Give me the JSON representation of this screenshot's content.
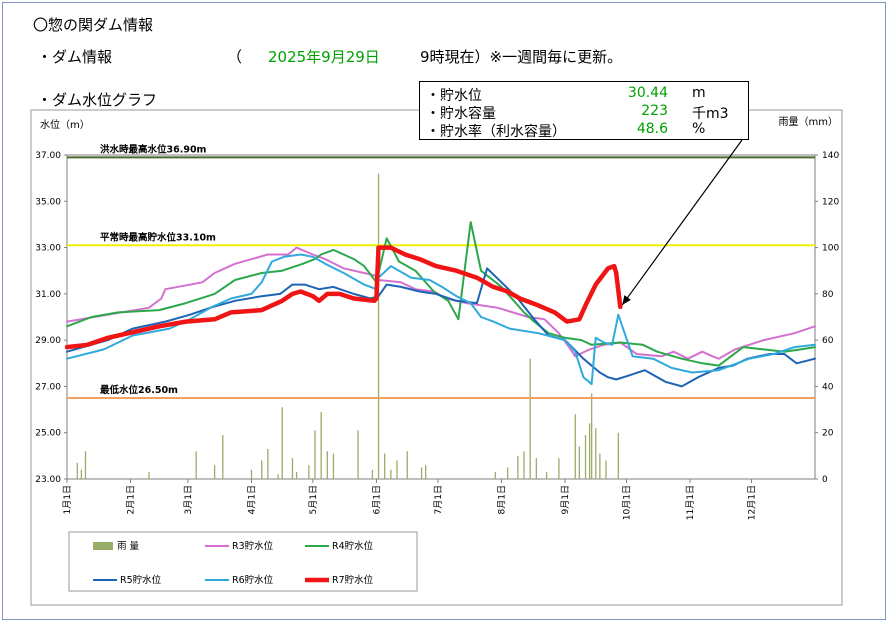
{
  "header": {
    "title": "〇惣の関ダム情報",
    "info_label": "・ダム情報",
    "paren_open": "（",
    "date": "2025年9月29日",
    "time_note": "9時現在）※一週間毎に更新。",
    "graph_label": "・ダム水位グラフ"
  },
  "status_box": {
    "items": [
      {
        "label": "・貯水位",
        "value": "30.44",
        "unit": "m"
      },
      {
        "label": "・貯水容量",
        "value": "223",
        "unit": "千m3"
      },
      {
        "label": "・貯水率（利水容量）",
        "value": "48.6",
        "unit": "%"
      }
    ]
  },
  "colors": {
    "rain": "#9aac6a",
    "R3": "#d470d0",
    "R4": "#2aa84a",
    "R5": "#1e64b4",
    "R6": "#30aadc",
    "R7": "#f01414",
    "flood_line": "#4a6a2a",
    "normal_line": "#f0f000",
    "min_line": "#f0a060",
    "value_text": "#00a000"
  },
  "chart_data": {
    "type": "line",
    "ylabel_left": "水位（m）",
    "ylabel_right": "雨量（mm）",
    "ylim_left": [
      23,
      37
    ],
    "ylim_right": [
      0,
      140
    ],
    "yticks_left": [
      "37.00",
      "35.00",
      "33.00",
      "31.00",
      "29.00",
      "27.00",
      "25.00",
      "23.00"
    ],
    "yticks_right": [
      "140",
      "120",
      "100",
      "80",
      "60",
      "40",
      "20",
      "0"
    ],
    "x_domain_days": [
      0,
      365
    ],
    "months": [
      {
        "label": "1月1日",
        "day": 0
      },
      {
        "label": "2月1日",
        "day": 31
      },
      {
        "label": "3月1日",
        "day": 59
      },
      {
        "label": "4月1日",
        "day": 90
      },
      {
        "label": "5月1日",
        "day": 120
      },
      {
        "label": "6月1日",
        "day": 151
      },
      {
        "label": "7月1日",
        "day": 181
      },
      {
        "label": "8月1日",
        "day": 212
      },
      {
        "label": "9月1日",
        "day": 243
      },
      {
        "label": "10月1日",
        "day": 273
      },
      {
        "label": "11月1日",
        "day": 304
      },
      {
        "label": "12月1日",
        "day": 334
      }
    ],
    "reference_lines": [
      {
        "name": "洪水時最高水位36.90m",
        "value": 36.9,
        "color_key": "flood_line"
      },
      {
        "name": "平常時最高貯水位33.10m",
        "value": 33.1,
        "color_key": "normal_line"
      },
      {
        "name": "最低水位26.50m",
        "value": 26.5,
        "color_key": "min_line"
      }
    ],
    "rain": {
      "name": "雨 量",
      "points": [
        [
          5,
          7
        ],
        [
          7,
          4
        ],
        [
          9,
          12
        ],
        [
          40,
          3
        ],
        [
          63,
          12
        ],
        [
          72,
          6
        ],
        [
          76,
          19
        ],
        [
          90,
          4
        ],
        [
          95,
          8
        ],
        [
          98,
          13
        ],
        [
          103,
          2
        ],
        [
          105,
          31
        ],
        [
          110,
          9
        ],
        [
          112,
          3
        ],
        [
          118,
          6
        ],
        [
          121,
          21
        ],
        [
          124,
          29
        ],
        [
          127,
          12
        ],
        [
          130,
          11
        ],
        [
          142,
          21
        ],
        [
          149,
          4
        ],
        [
          152,
          132
        ],
        [
          155,
          11
        ],
        [
          158,
          4
        ],
        [
          161,
          8
        ],
        [
          166,
          12
        ],
        [
          173,
          5
        ],
        [
          175,
          6
        ],
        [
          209,
          3
        ],
        [
          215,
          5
        ],
        [
          220,
          10
        ],
        [
          223,
          12
        ],
        [
          226,
          52
        ],
        [
          229,
          9
        ],
        [
          234,
          3
        ],
        [
          240,
          9
        ],
        [
          248,
          28
        ],
        [
          250,
          14
        ],
        [
          253,
          19
        ],
        [
          255,
          24
        ],
        [
          256,
          37
        ],
        [
          258,
          22
        ],
        [
          260,
          11
        ],
        [
          263,
          8
        ],
        [
          269,
          20
        ]
      ]
    },
    "series": [
      {
        "name": "R3貯水位",
        "color_key": "R3",
        "width": 2,
        "points": [
          [
            0,
            29.8
          ],
          [
            20,
            30.1
          ],
          [
            40,
            30.4
          ],
          [
            46,
            30.8
          ],
          [
            48,
            31.2
          ],
          [
            66,
            31.5
          ],
          [
            72,
            31.9
          ],
          [
            82,
            32.3
          ],
          [
            98,
            32.7
          ],
          [
            108,
            32.7
          ],
          [
            112,
            33.0
          ],
          [
            120,
            32.7
          ],
          [
            126,
            32.5
          ],
          [
            135,
            32.1
          ],
          [
            150,
            31.8
          ],
          [
            152,
            31.6
          ],
          [
            163,
            31.5
          ],
          [
            170,
            31.2
          ],
          [
            179,
            31.1
          ],
          [
            185,
            30.8
          ],
          [
            195,
            30.6
          ],
          [
            210,
            30.4
          ],
          [
            225,
            30.0
          ],
          [
            233,
            29.9
          ],
          [
            240,
            29.3
          ],
          [
            245,
            28.7
          ],
          [
            248,
            28.3
          ],
          [
            255,
            28.6
          ],
          [
            262,
            28.8
          ],
          [
            270,
            28.9
          ],
          [
            278,
            28.4
          ],
          [
            290,
            28.3
          ],
          [
            296,
            28.5
          ],
          [
            303,
            28.2
          ],
          [
            310,
            28.5
          ],
          [
            315,
            28.3
          ],
          [
            318,
            28.2
          ],
          [
            326,
            28.6
          ],
          [
            340,
            29.0
          ],
          [
            355,
            29.3
          ],
          [
            365,
            29.6
          ]
        ]
      },
      {
        "name": "R4貯水位",
        "color_key": "R4",
        "width": 2,
        "points": [
          [
            0,
            29.6
          ],
          [
            12,
            30.0
          ],
          [
            25,
            30.2
          ],
          [
            45,
            30.3
          ],
          [
            58,
            30.6
          ],
          [
            72,
            31.0
          ],
          [
            82,
            31.6
          ],
          [
            95,
            31.9
          ],
          [
            105,
            32.0
          ],
          [
            115,
            32.3
          ],
          [
            121,
            32.5
          ],
          [
            124,
            32.7
          ],
          [
            130,
            32.9
          ],
          [
            140,
            32.5
          ],
          [
            145,
            32.2
          ],
          [
            151,
            31.5
          ],
          [
            156,
            33.4
          ],
          [
            162,
            32.4
          ],
          [
            170,
            32.0
          ],
          [
            179,
            31.1
          ],
          [
            186,
            30.7
          ],
          [
            191,
            29.9
          ],
          [
            197,
            34.1
          ],
          [
            202,
            32.0
          ],
          [
            212,
            31.3
          ],
          [
            216,
            30.9
          ],
          [
            223,
            30.2
          ],
          [
            228,
            29.8
          ],
          [
            235,
            29.3
          ],
          [
            243,
            29.1
          ],
          [
            251,
            29.0
          ],
          [
            256,
            28.8
          ],
          [
            270,
            28.9
          ],
          [
            281,
            28.8
          ],
          [
            288,
            28.5
          ],
          [
            300,
            28.2
          ],
          [
            310,
            28.0
          ],
          [
            318,
            27.9
          ],
          [
            330,
            28.7
          ],
          [
            340,
            28.6
          ],
          [
            350,
            28.5
          ],
          [
            358,
            28.6
          ],
          [
            365,
            28.7
          ]
        ]
      },
      {
        "name": "R5貯水位",
        "color_key": "R5",
        "width": 2,
        "points": [
          [
            0,
            28.5
          ],
          [
            20,
            29.0
          ],
          [
            32,
            29.5
          ],
          [
            48,
            29.8
          ],
          [
            60,
            30.1
          ],
          [
            70,
            30.4
          ],
          [
            82,
            30.7
          ],
          [
            95,
            30.9
          ],
          [
            104,
            31.0
          ],
          [
            110,
            31.4
          ],
          [
            116,
            31.4
          ],
          [
            123,
            31.2
          ],
          [
            130,
            31.3
          ],
          [
            140,
            31.0
          ],
          [
            148,
            30.8
          ],
          [
            152,
            30.9
          ],
          [
            156,
            31.4
          ],
          [
            163,
            31.3
          ],
          [
            172,
            31.1
          ],
          [
            180,
            31.0
          ],
          [
            190,
            30.7
          ],
          [
            200,
            30.6
          ],
          [
            205,
            32.1
          ],
          [
            212,
            31.5
          ],
          [
            220,
            30.8
          ],
          [
            228,
            29.9
          ],
          [
            235,
            29.2
          ],
          [
            243,
            29.0
          ],
          [
            252,
            28.2
          ],
          [
            256,
            27.9
          ],
          [
            260,
            27.6
          ],
          [
            264,
            27.4
          ],
          [
            268,
            27.3
          ],
          [
            275,
            27.5
          ],
          [
            282,
            27.7
          ],
          [
            292,
            27.2
          ],
          [
            300,
            27.0
          ],
          [
            308,
            27.4
          ],
          [
            318,
            27.8
          ],
          [
            325,
            27.9
          ],
          [
            332,
            28.2
          ],
          [
            343,
            28.4
          ],
          [
            350,
            28.4
          ],
          [
            356,
            28.0
          ],
          [
            365,
            28.2
          ]
        ]
      },
      {
        "name": "R6貯水位",
        "color_key": "R6",
        "width": 2,
        "points": [
          [
            0,
            28.2
          ],
          [
            18,
            28.6
          ],
          [
            32,
            29.2
          ],
          [
            50,
            29.5
          ],
          [
            60,
            29.9
          ],
          [
            70,
            30.4
          ],
          [
            80,
            30.8
          ],
          [
            90,
            31.0
          ],
          [
            95,
            31.5
          ],
          [
            100,
            32.4
          ],
          [
            106,
            32.6
          ],
          [
            114,
            32.7
          ],
          [
            120,
            32.6
          ],
          [
            126,
            32.3
          ],
          [
            135,
            31.9
          ],
          [
            145,
            31.4
          ],
          [
            151,
            31.2
          ],
          [
            152,
            31.7
          ],
          [
            158,
            32.2
          ],
          [
            168,
            31.7
          ],
          [
            177,
            31.6
          ],
          [
            183,
            31.3
          ],
          [
            190,
            30.9
          ],
          [
            197,
            30.6
          ],
          [
            202,
            30.0
          ],
          [
            208,
            29.8
          ],
          [
            216,
            29.5
          ],
          [
            230,
            29.3
          ],
          [
            243,
            29.0
          ],
          [
            248,
            28.5
          ],
          [
            252,
            27.4
          ],
          [
            256,
            27.1
          ],
          [
            258,
            29.1
          ],
          [
            262,
            28.9
          ],
          [
            266,
            28.8
          ],
          [
            269,
            30.1
          ],
          [
            276,
            28.3
          ],
          [
            286,
            28.2
          ],
          [
            295,
            27.8
          ],
          [
            305,
            27.6
          ],
          [
            318,
            27.7
          ],
          [
            333,
            28.2
          ],
          [
            345,
            28.4
          ],
          [
            355,
            28.7
          ],
          [
            365,
            28.8
          ]
        ]
      },
      {
        "name": "R7貯水位",
        "color_key": "R7",
        "width": 4.5,
        "points": [
          [
            0,
            28.7
          ],
          [
            10,
            28.8
          ],
          [
            20,
            29.1
          ],
          [
            30,
            29.3
          ],
          [
            45,
            29.6
          ],
          [
            58,
            29.8
          ],
          [
            72,
            29.9
          ],
          [
            80,
            30.2
          ],
          [
            95,
            30.3
          ],
          [
            100,
            30.5
          ],
          [
            105,
            30.7
          ],
          [
            110,
            31.0
          ],
          [
            114,
            31.1
          ],
          [
            120,
            30.9
          ],
          [
            123,
            30.7
          ],
          [
            127,
            31.0
          ],
          [
            133,
            31.0
          ],
          [
            140,
            30.8
          ],
          [
            150,
            30.7
          ],
          [
            151,
            30.8
          ],
          [
            152,
            33.0
          ],
          [
            158,
            33.0
          ],
          [
            165,
            32.7
          ],
          [
            172,
            32.5
          ],
          [
            180,
            32.2
          ],
          [
            190,
            32.0
          ],
          [
            200,
            31.7
          ],
          [
            208,
            31.3
          ],
          [
            215,
            31.1
          ],
          [
            221,
            30.8
          ],
          [
            230,
            30.5
          ],
          [
            238,
            30.2
          ],
          [
            244,
            29.8
          ],
          [
            250,
            29.9
          ],
          [
            253,
            30.5
          ],
          [
            258,
            31.4
          ],
          [
            264,
            32.1
          ],
          [
            267,
            32.2
          ],
          [
            268,
            31.9
          ],
          [
            270,
            30.44
          ]
        ]
      }
    ]
  }
}
